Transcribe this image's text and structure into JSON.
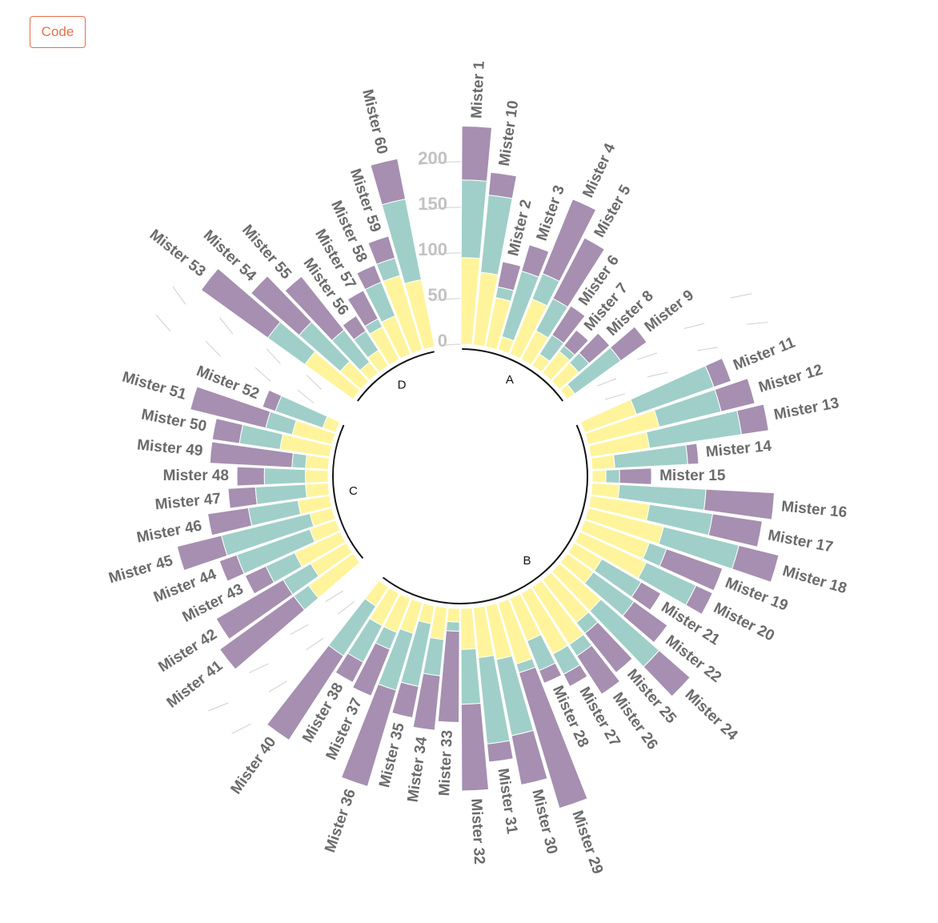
{
  "button": {
    "code_label": "Code"
  },
  "chart_data": {
    "type": "circular-stacked-bar",
    "title": "",
    "colors": {
      "v1": "#fff49b",
      "v2": "#9fcfc8",
      "v3": "#a68fb0",
      "baseline": "#111111",
      "grid": "#cfcfcf",
      "tick": "#c2c2c2"
    },
    "ticks": [
      0,
      50,
      100,
      150,
      200
    ],
    "groups": [
      {
        "name": "A",
        "items": [
          {
            "label": "Mister 1",
            "values": [
              95,
              85,
              59
            ]
          },
          {
            "label": "Mister 10",
            "values": [
              80,
              85,
              25
            ]
          },
          {
            "label": "Mister 2",
            "values": [
              55,
              12,
              28
            ]
          },
          {
            "label": "Mister 3",
            "values": [
              15,
              75,
              30
            ]
          },
          {
            "label": "Mister 4",
            "values": [
              65,
              30,
              88
            ]
          },
          {
            "label": "Mister 5",
            "values": [
              35,
              40,
              75
            ]
          },
          {
            "label": "Mister 6",
            "values": [
              15,
              25,
              38
            ]
          },
          {
            "label": "Mister 7",
            "values": [
              30,
              8,
              22
            ]
          },
          {
            "label": "Mister 8",
            "values": [
              28,
              15,
              30
            ]
          },
          {
            "label": "Mister 9",
            "values": [
              10,
              62,
              35
            ]
          }
        ]
      },
      {
        "name": "B",
        "items": [
          {
            "label": "Mister 11",
            "values": [
              60,
              90,
              20
            ]
          },
          {
            "label": "Mister 12",
            "values": [
              80,
              70,
              38
            ]
          },
          {
            "label": "Mister 13",
            "values": [
              65,
              102,
              30
            ]
          },
          {
            "label": "Mister 14",
            "values": [
              25,
              80,
              12
            ]
          },
          {
            "label": "Mister 15",
            "values": [
              15,
              15,
              35
            ]
          },
          {
            "label": "Mister 16",
            "values": [
              30,
              95,
              75
            ]
          },
          {
            "label": "Mister 17",
            "values": [
              65,
              70,
              55
            ]
          },
          {
            "label": "Mister 18",
            "values": [
              85,
              85,
              45
            ]
          },
          {
            "label": "Mister 19",
            "values": [
              75,
              20,
              65
            ]
          },
          {
            "label": "Mister 20",
            "values": [
              80,
              60,
              20
            ]
          },
          {
            "label": "Mister 21",
            "values": [
              35,
              50,
              25
            ]
          },
          {
            "label": "Mister 22",
            "values": [
              35,
              55,
              45
            ]
          },
          {
            "label": "Mister 24",
            "values": [
              60,
              85,
              45
            ]
          },
          {
            "label": "Mister 25",
            "values": [
              60,
              15,
              55
            ]
          },
          {
            "label": "Mister 26",
            "values": [
              75,
              15,
              50
            ]
          },
          {
            "label": "Mister 27",
            "values": [
              75,
              25,
              15
            ]
          },
          {
            "label": "Mister 28",
            "values": [
              50,
              35,
              15
            ]
          },
          {
            "label": "Mister 29",
            "values": [
              70,
              10,
              155
            ]
          },
          {
            "label": "Mister 30",
            "values": [
              60,
              85,
              55
            ]
          },
          {
            "label": "Mister 31",
            "values": [
              55,
              95,
              20
            ]
          },
          {
            "label": "Mister 32",
            "values": [
              45,
              60,
              95
            ]
          },
          {
            "label": "Mister 33",
            "values": [
              15,
              10,
              100
            ]
          },
          {
            "label": "Mister 34",
            "values": [
              35,
              40,
              60
            ]
          },
          {
            "label": "Mister 35",
            "values": [
              20,
              70,
              35
            ]
          },
          {
            "label": "Mister 36",
            "values": [
              35,
              65,
              110
            ]
          },
          {
            "label": "Mister 37",
            "values": [
              40,
              20,
              55
            ]
          },
          {
            "label": "Mister 38",
            "values": [
              40,
              45,
              25
            ]
          },
          {
            "label": "Mister 40",
            "values": [
              25,
              65,
              110
            ]
          }
        ]
      },
      {
        "name": "C",
        "items": [
          {
            "label": "Mister 41",
            "values": [
              60,
              20,
              100
            ]
          },
          {
            "label": "Mister 42",
            "values": [
              45,
              35,
              85
            ]
          },
          {
            "label": "Mister 43",
            "values": [
              55,
              35,
              25
            ]
          },
          {
            "label": "Mister 44",
            "values": [
              30,
              85,
              20
            ]
          },
          {
            "label": "Mister 45",
            "values": [
              25,
              100,
              50
            ]
          },
          {
            "label": "Mister 46",
            "values": [
              35,
              55,
              45
            ]
          },
          {
            "label": "Mister 47",
            "values": [
              25,
              55,
              30
            ]
          },
          {
            "label": "Mister 48",
            "values": [
              25,
              45,
              30
            ]
          },
          {
            "label": "Mister 49",
            "values": [
              25,
              15,
              90
            ]
          },
          {
            "label": "Mister 50",
            "values": [
              55,
              45,
              30
            ]
          },
          {
            "label": "Mister 51",
            "values": [
              45,
              30,
              85
            ]
          },
          {
            "label": "Mister 52",
            "values": [
              15,
              55,
              15
            ]
          }
        ]
      },
      {
        "name": "D",
        "items": [
          {
            "label": "Mister 53",
            "values": [
              65,
              50,
              90
            ]
          },
          {
            "label": "Mister 54",
            "values": [
              30,
              60,
              70
            ]
          },
          {
            "label": "Mister 55",
            "values": [
              15,
              45,
              75
            ]
          },
          {
            "label": "Mister 56",
            "values": [
              20,
              25,
              20
            ]
          },
          {
            "label": "Mister 57",
            "values": [
              40,
              10,
              35
            ]
          },
          {
            "label": "Mister 58",
            "values": [
              45,
              40,
              20
            ]
          },
          {
            "label": "Mister 59",
            "values": [
              85,
              20,
              25
            ]
          },
          {
            "label": "Mister 60",
            "values": [
              75,
              90,
              45
            ]
          }
        ]
      }
    ]
  }
}
